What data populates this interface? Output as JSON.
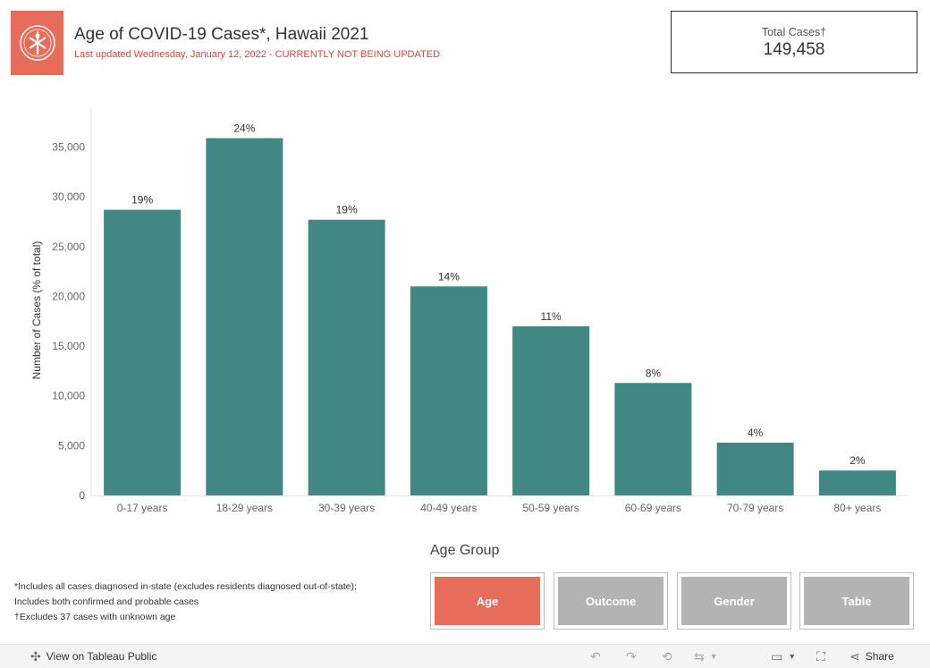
{
  "header": {
    "title": "Age of COVID-19 Cases*, Hawaii 2021",
    "subtitle": "Last updated Wednesday, January 12, 2022  - CURRENTLY NOT BEING UPDATED"
  },
  "total": {
    "label": "Total Cases†",
    "value": "149,458"
  },
  "colors": {
    "bar": "#418784",
    "accent": "#e86c5a",
    "subtitle": "#e0443a",
    "inactive_tab": "#b3b3b3"
  },
  "chart_data": {
    "type": "bar",
    "categories": [
      "0-17 years",
      "18-29 years",
      "30-39 years",
      "40-49 years",
      "50-59 years",
      "60-69 years",
      "70-79 years",
      "80+ years"
    ],
    "values": [
      28700,
      35900,
      27700,
      21000,
      17000,
      11300,
      5300,
      2500
    ],
    "data_labels": [
      "19%",
      "24%",
      "19%",
      "14%",
      "11%",
      "8%",
      "4%",
      "2%"
    ],
    "ylabel": "Number of Cases (% of total)",
    "yticks": [
      0,
      5000,
      10000,
      15000,
      20000,
      25000,
      30000,
      35000
    ],
    "ytick_labels": [
      "0",
      "5,000",
      "10,000",
      "15,000",
      "20,000",
      "25,000",
      "30,000",
      "35,000"
    ],
    "ylim": [
      0,
      39000
    ],
    "grid": false
  },
  "footnotes": {
    "line1": "*Includes all cases diagnosed in-state (excludes residents diagnosed out-of-state);",
    "line2": "Includes both confirmed and probable cases",
    "line3": "†Excludes 37 cases with unknown age"
  },
  "group_selector": {
    "title": "Age Group",
    "tabs": [
      {
        "label": "Age",
        "active": true
      },
      {
        "label": "Outcome",
        "active": false
      },
      {
        "label": "Gender",
        "active": false
      },
      {
        "label": "Table",
        "active": false
      }
    ]
  },
  "toolbar": {
    "view_label": "View on Tableau Public",
    "share_label": "Share"
  }
}
